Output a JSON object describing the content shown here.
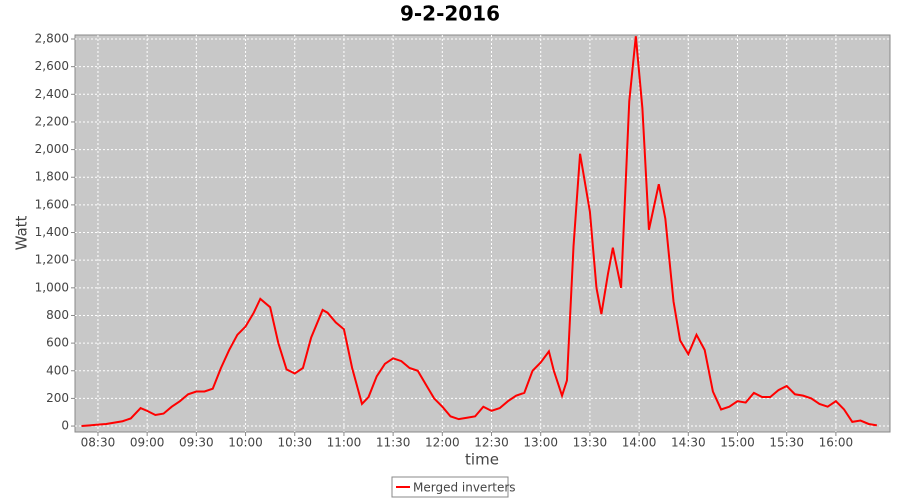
{
  "chart_data": {
    "type": "line",
    "title": "9-2-2016",
    "x_label": "time",
    "y_label": "Watt",
    "x": [
      "08:20",
      "08:25",
      "08:30",
      "08:35",
      "08:40",
      "08:45",
      "08:50",
      "08:56",
      "09:00",
      "09:05",
      "09:10",
      "09:15",
      "09:20",
      "09:25",
      "09:30",
      "09:35",
      "09:40",
      "09:45",
      "09:50",
      "09:55",
      "10:00",
      "10:05",
      "10:09",
      "10:15",
      "10:20",
      "10:25",
      "10:30",
      "10:35",
      "10:40",
      "10:47",
      "10:50",
      "10:55",
      "11:00",
      "11:05",
      "11:11",
      "11:15",
      "11:20",
      "11:25",
      "11:30",
      "11:35",
      "11:40",
      "11:45",
      "11:50",
      "11:55",
      "12:00",
      "12:05",
      "12:10",
      "12:15",
      "12:20",
      "12:25",
      "12:30",
      "12:35",
      "12:40",
      "12:45",
      "12:50",
      "12:55",
      "13:00",
      "13:05",
      "13:08",
      "13:13",
      "13:16",
      "13:20",
      "13:24",
      "13:30",
      "13:34",
      "13:37",
      "13:41",
      "13:44",
      "13:49",
      "13:54",
      "13:58",
      "14:02",
      "14:06",
      "14:12",
      "14:16",
      "14:21",
      "14:25",
      "14:30",
      "14:35",
      "14:40",
      "14:45",
      "14:50",
      "14:55",
      "15:00",
      "15:05",
      "15:10",
      "15:15",
      "15:20",
      "15:25",
      "15:30",
      "15:35",
      "15:40",
      "15:45",
      "15:50",
      "15:55",
      "16:00",
      "16:05",
      "16:10",
      "16:15",
      "16:20",
      "16:25"
    ],
    "series": [
      {
        "name": "Merged inverters",
        "color": "#ff0000",
        "values": [
          0,
          5,
          10,
          15,
          25,
          35,
          55,
          130,
          110,
          80,
          90,
          140,
          180,
          230,
          250,
          250,
          270,
          420,
          550,
          660,
          720,
          820,
          920,
          860,
          600,
          410,
          380,
          420,
          640,
          840,
          820,
          750,
          700,
          420,
          160,
          210,
          360,
          450,
          490,
          470,
          420,
          400,
          300,
          200,
          140,
          70,
          50,
          60,
          70,
          140,
          110,
          130,
          180,
          220,
          240,
          400,
          460,
          540,
          400,
          220,
          330,
          1300,
          1970,
          1550,
          1000,
          810,
          1100,
          1290,
          1000,
          2350,
          2820,
          2300,
          1420,
          1750,
          1500,
          900,
          620,
          520,
          660,
          550,
          250,
          120,
          140,
          180,
          170,
          240,
          210,
          210,
          260,
          290,
          230,
          220,
          200,
          160,
          140,
          180,
          120,
          30,
          40,
          15,
          5
        ]
      }
    ],
    "xlim": [
      "08:16",
      "16:33"
    ],
    "xticks": [
      "08:30",
      "09:00",
      "09:30",
      "10:00",
      "10:30",
      "11:00",
      "11:30",
      "12:00",
      "12:30",
      "13:00",
      "13:30",
      "14:00",
      "14:30",
      "15:00",
      "15:30",
      "16:00"
    ],
    "ylim": [
      -43,
      2829
    ],
    "yticks": [
      0,
      200,
      400,
      600,
      800,
      {
        "value": 1000,
        "label": "1,000"
      },
      {
        "value": 1200,
        "label": "1,200"
      },
      {
        "value": 1400,
        "label": "1,400"
      },
      {
        "value": 1600,
        "label": "1,600"
      },
      {
        "value": 1800,
        "label": "1,800"
      },
      {
        "value": 2000,
        "label": "2,000"
      },
      {
        "value": 2200,
        "label": "2,200"
      },
      {
        "value": 2400,
        "label": "2,400"
      },
      {
        "value": 2600,
        "label": "2,600"
      },
      {
        "value": 2800,
        "label": "2,800"
      }
    ],
    "grid": true
  }
}
